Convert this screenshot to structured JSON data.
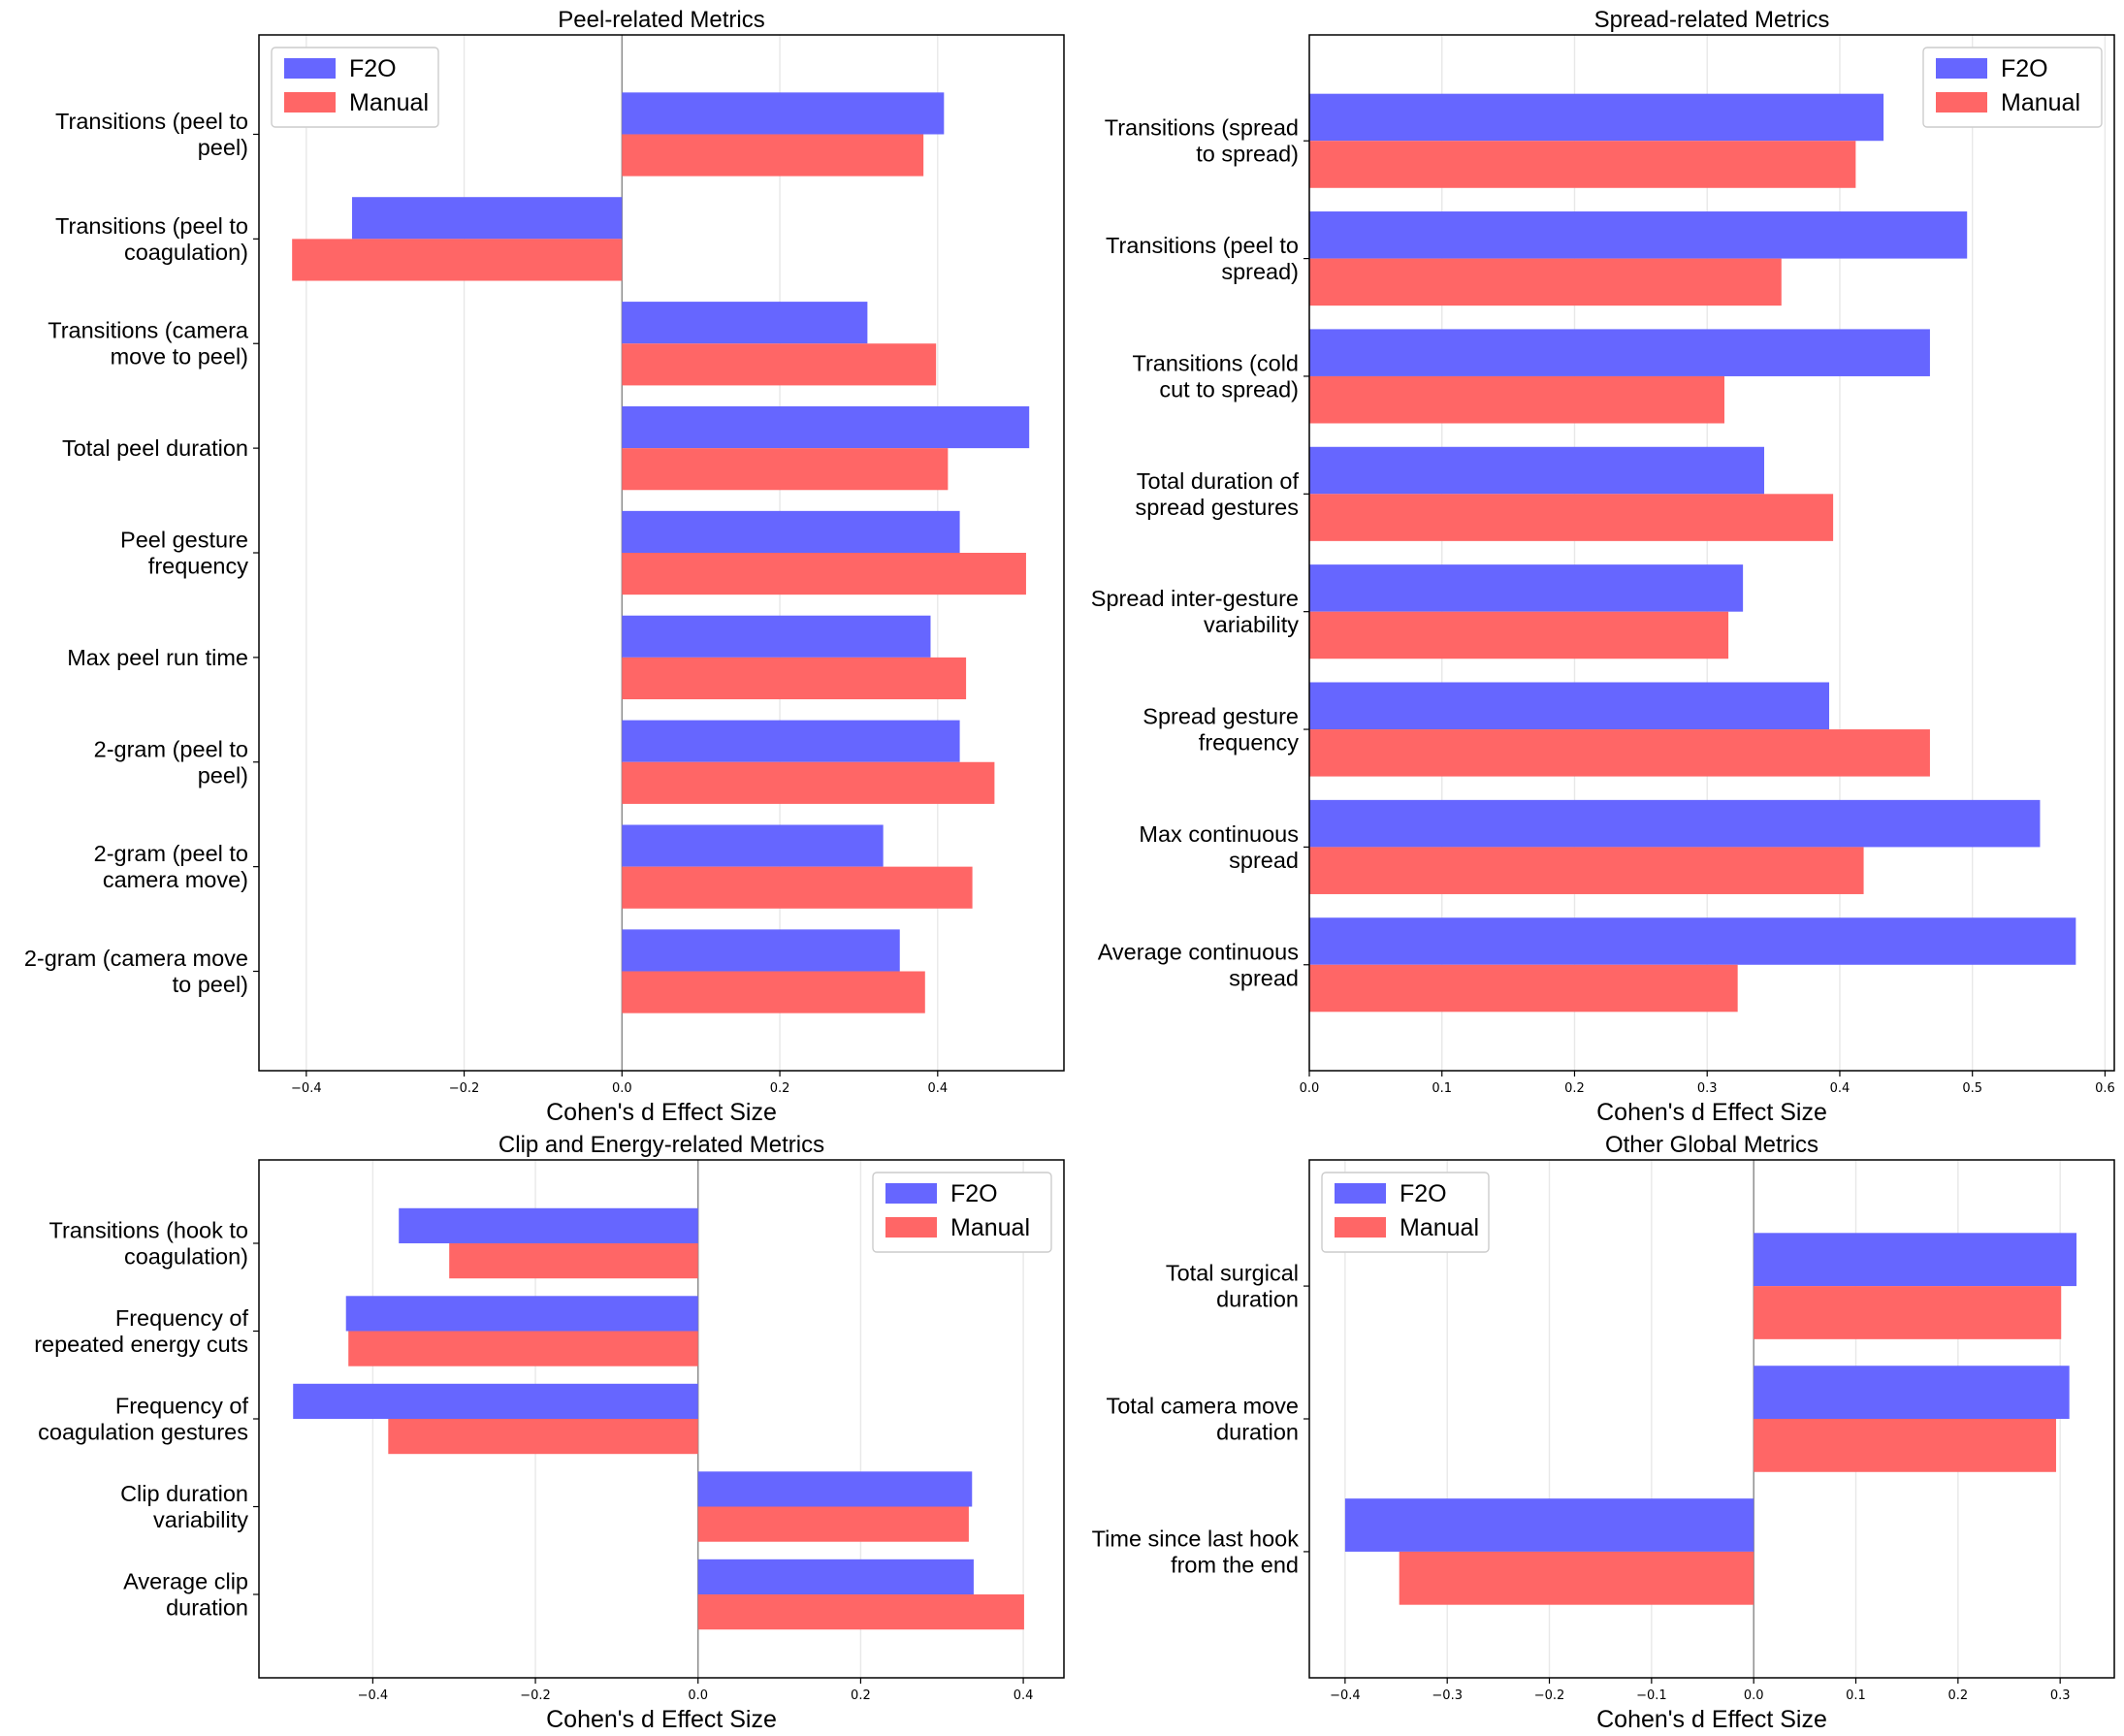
{
  "colors": {
    "f2o": "#6666ff",
    "manual": "#ff6666"
  },
  "chart_data": [
    {
      "type": "bar",
      "orientation": "horizontal",
      "title": "Peel-related Metrics",
      "xlabel": "Cohen's d Effect Size",
      "xlim": [
        -0.46,
        0.56
      ],
      "xticks": [
        -0.4,
        -0.2,
        0.0,
        0.2,
        0.4
      ],
      "xtick_labels": [
        "−0.4",
        "−0.2",
        "0.0",
        "0.2",
        "0.4"
      ],
      "legend_position": "top-left",
      "categories": [
        [
          "Transitions (peel to",
          "peel)"
        ],
        [
          "Transitions (peel to",
          "coagulation)"
        ],
        [
          "Transitions (camera",
          "move to peel)"
        ],
        [
          "Total peel duration"
        ],
        [
          "Peel gesture",
          "frequency"
        ],
        [
          "Max peel run time"
        ],
        [
          "2-gram (peel to",
          "peel)"
        ],
        [
          "2-gram (peel to",
          "camera move)"
        ],
        [
          "2-gram (camera move",
          "to peel)"
        ]
      ],
      "series": [
        {
          "name": "F2O",
          "values": [
            0.408,
            -0.342,
            0.311,
            0.516,
            0.428,
            0.391,
            0.428,
            0.331,
            0.352
          ]
        },
        {
          "name": "Manual",
          "values": [
            0.382,
            -0.418,
            0.398,
            0.413,
            0.512,
            0.436,
            0.472,
            0.444,
            0.384
          ]
        }
      ]
    },
    {
      "type": "bar",
      "orientation": "horizontal",
      "title": "Spread-related Metrics",
      "xlabel": "Cohen's d Effect Size",
      "xlim": [
        0.0,
        0.607
      ],
      "xticks": [
        0.0,
        0.1,
        0.2,
        0.3,
        0.4,
        0.5,
        0.6
      ],
      "xtick_labels": [
        "0.0",
        "0.1",
        "0.2",
        "0.3",
        "0.4",
        "0.5",
        "0.6"
      ],
      "legend_position": "top-right",
      "categories": [
        [
          "Transitions (spread",
          "to spread)"
        ],
        [
          "Transitions (peel to",
          "spread)"
        ],
        [
          "Transitions (cold",
          "cut to spread)"
        ],
        [
          "Total duration of",
          "spread gestures"
        ],
        [
          "Spread inter-gesture",
          "variability"
        ],
        [
          "Spread gesture",
          "frequency"
        ],
        [
          "Max continuous",
          "spread"
        ],
        [
          "Average continuous",
          "spread"
        ]
      ],
      "series": [
        {
          "name": "F2O",
          "values": [
            0.433,
            0.496,
            0.468,
            0.343,
            0.327,
            0.392,
            0.551,
            0.578
          ]
        },
        {
          "name": "Manual",
          "values": [
            0.412,
            0.356,
            0.313,
            0.395,
            0.316,
            0.468,
            0.418,
            0.323
          ]
        }
      ]
    },
    {
      "type": "bar",
      "orientation": "horizontal",
      "title": "Clip and Energy-related Metrics",
      "xlabel": "Cohen's d Effect Size",
      "xlim": [
        -0.54,
        0.45
      ],
      "xticks": [
        -0.4,
        -0.2,
        0.0,
        0.2,
        0.4
      ],
      "xtick_labels": [
        "−0.4",
        "−0.2",
        "0.0",
        "0.2",
        "0.4"
      ],
      "legend_position": "top-right",
      "categories": [
        [
          "Transitions (hook to",
          "coagulation)"
        ],
        [
          "Frequency of",
          "repeated energy cuts"
        ],
        [
          "Frequency of",
          "coagulation gestures"
        ],
        [
          "Clip duration",
          "variability"
        ],
        [
          "Average clip",
          "duration"
        ]
      ],
      "series": [
        {
          "name": "F2O",
          "values": [
            -0.368,
            -0.433,
            -0.498,
            0.337,
            0.339
          ]
        },
        {
          "name": "Manual",
          "values": [
            -0.306,
            -0.43,
            -0.381,
            0.333,
            0.401
          ]
        }
      ]
    },
    {
      "type": "bar",
      "orientation": "horizontal",
      "title": "Other Global Metrics",
      "xlabel": "Cohen's d Effect Size",
      "xlim": [
        -0.435,
        0.353
      ],
      "xticks": [
        -0.4,
        -0.3,
        -0.2,
        -0.1,
        0.0,
        0.1,
        0.2,
        0.3
      ],
      "xtick_labels": [
        "−0.4",
        "−0.3",
        "−0.2",
        "−0.1",
        "0.0",
        "0.1",
        "0.2",
        "0.3"
      ],
      "legend_position": "top-left",
      "categories": [
        [
          "Total surgical",
          "duration"
        ],
        [
          "Total camera move",
          "duration"
        ],
        [
          "Time since last hook",
          "from the end"
        ]
      ],
      "series": [
        {
          "name": "F2O",
          "values": [
            0.316,
            0.309,
            -0.4
          ]
        },
        {
          "name": "Manual",
          "values": [
            0.301,
            0.296,
            -0.347
          ]
        }
      ]
    }
  ]
}
